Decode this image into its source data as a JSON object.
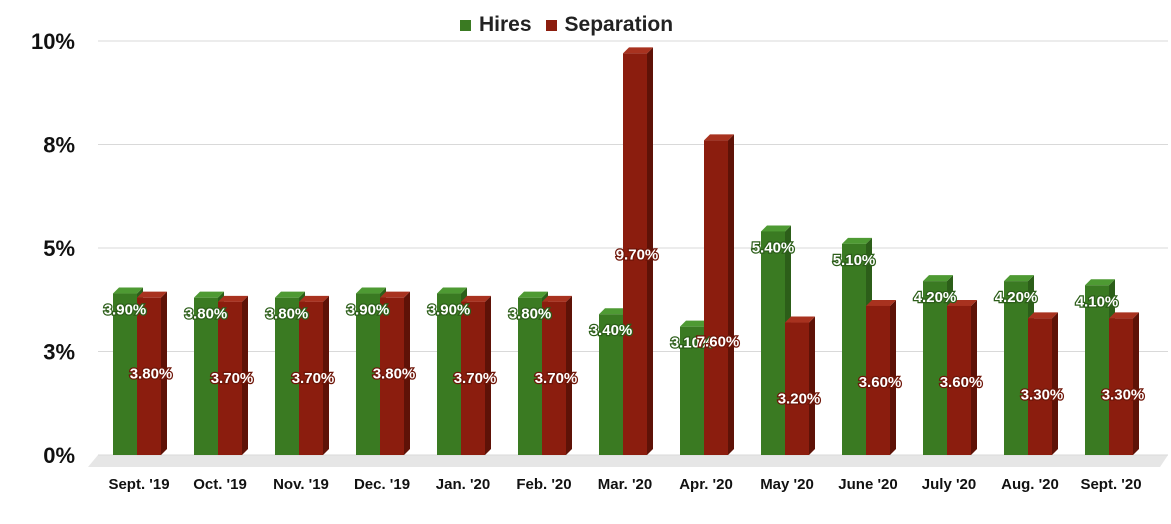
{
  "legend": {
    "items": [
      {
        "name": "Hires",
        "color": "#3a7a22"
      },
      {
        "name": "Separation",
        "color": "#8b1d0e"
      }
    ]
  },
  "chart_data": {
    "type": "bar",
    "title": "",
    "xlabel": "",
    "ylabel": "",
    "categories": [
      "Sept. '19",
      "Oct. '19",
      "Nov. '19",
      "Dec. '19",
      "Jan. '20",
      "Feb. '20",
      "Mar. '20",
      "Apr. '20",
      "May '20",
      "June '20",
      "July '20",
      "Aug. '20",
      "Sept. '20"
    ],
    "series": [
      {
        "name": "Hires",
        "color": "#3a7a22",
        "values": [
          3.9,
          3.8,
          3.8,
          3.9,
          3.9,
          3.8,
          3.4,
          3.1,
          5.4,
          5.1,
          4.2,
          4.2,
          4.1
        ],
        "labels": [
          "3.90%",
          "3.80%",
          "3.80%",
          "3.90%",
          "3.90%",
          "3.80%",
          "3.40%",
          "3.10%",
          "5.40%",
          "5.10%",
          "4.20%",
          "4.20%",
          "4.10%"
        ]
      },
      {
        "name": "Separation",
        "color": "#8b1d0e",
        "values": [
          3.8,
          3.7,
          3.7,
          3.8,
          3.7,
          3.7,
          9.7,
          7.6,
          3.2,
          3.6,
          3.6,
          3.3,
          3.3
        ],
        "labels": [
          "3.80%",
          "3.70%",
          "3.70%",
          "3.80%",
          "3.70%",
          "3.70%",
          "9.70%",
          "7.60%",
          "3.20%",
          "3.60%",
          "3.60%",
          "3.30%",
          "3.30%"
        ]
      }
    ],
    "yticks": [
      0,
      2.5,
      5,
      7.5,
      10
    ],
    "ytick_labels": [
      "0%",
      "3%",
      "5%",
      "8%",
      "10%"
    ],
    "ylim": [
      0,
      10
    ],
    "grid": true,
    "legend_position": "top-center"
  }
}
